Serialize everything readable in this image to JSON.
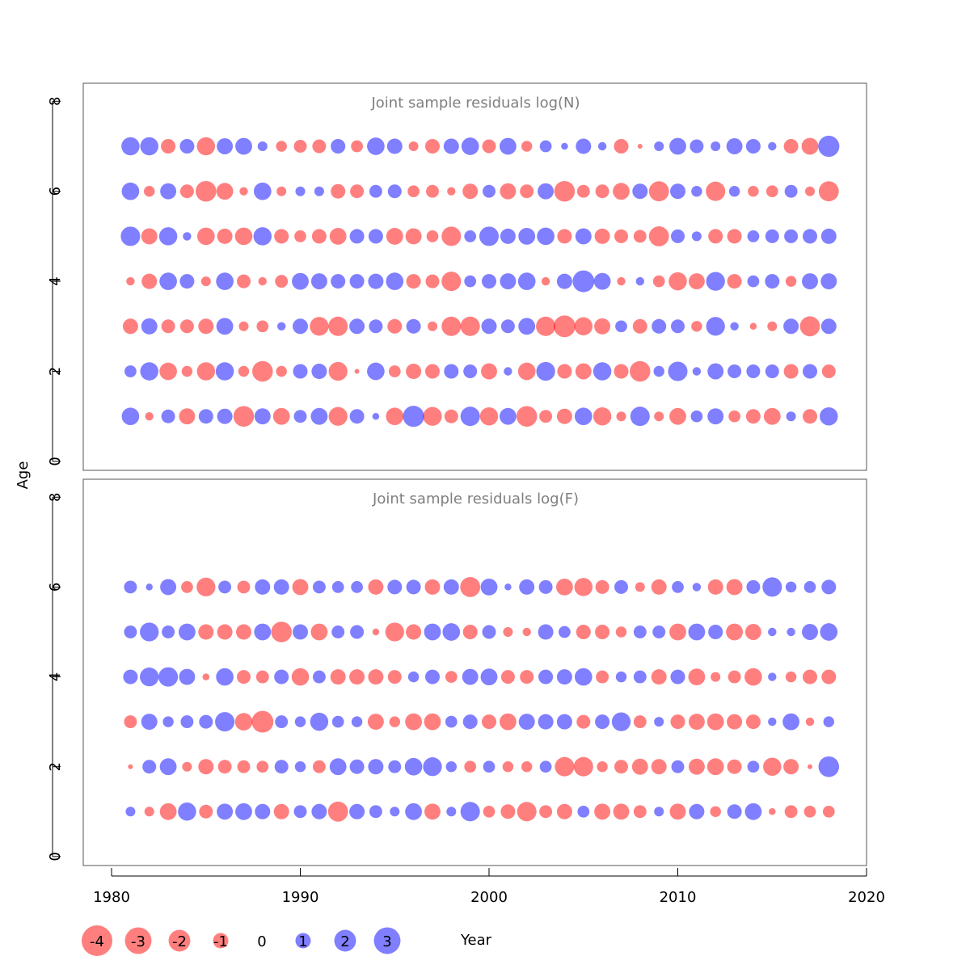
{
  "chart_data": [
    {
      "type": "scatter",
      "title": "Joint sample residuals log(N)",
      "xlabel": "Year",
      "ylabel": "Age",
      "xlim": [
        1978.5,
        2020
      ],
      "ylim": [
        -0.2,
        8.4
      ],
      "x_ticks": [
        "1980",
        "1990",
        "2000",
        "2010",
        "2020"
      ],
      "y_ticks": [
        "0",
        "2",
        "4",
        "6",
        "8"
      ],
      "ages": [
        1,
        2,
        3,
        4,
        5,
        6,
        7
      ],
      "years": [
        1981,
        1982,
        1983,
        1984,
        1985,
        1986,
        1987,
        1988,
        1989,
        1990,
        1991,
        1992,
        1993,
        1994,
        1995,
        1996,
        1997,
        1998,
        1999,
        2000,
        2001,
        2002,
        2003,
        2004,
        2005,
        2006,
        2007,
        2008,
        2009,
        2010,
        2011,
        2012,
        2013,
        2014,
        2015,
        2016,
        2017,
        2018
      ],
      "residuals": [
        [
          1.3,
          -0.3,
          0.8,
          -1.1,
          0.9,
          1.0,
          -1.8,
          1.1,
          -1.2,
          0.7,
          1.2,
          -1.5,
          0.9,
          0.2,
          -1.3,
          1.9,
          -1.5,
          -0.8,
          1.6,
          -1.4,
          1.2,
          -1.8,
          -0.7,
          -1.0,
          1.3,
          -1.4,
          -0.4,
          1.6,
          -0.4,
          -1.2,
          0.6,
          1.1,
          -0.6,
          -0.9,
          -1.2,
          0.4,
          -0.9,
          1.4
        ],
        [
          0.6,
          1.4,
          -1.3,
          -0.5,
          -1.4,
          1.4,
          -0.5,
          -1.8,
          -0.5,
          0.9,
          1.0,
          -1.5,
          -0.1,
          1.3,
          -0.6,
          -1.0,
          -0.9,
          0.9,
          0.8,
          -1.1,
          0.3,
          -1.3,
          1.5,
          -0.9,
          -1.1,
          1.4,
          -0.9,
          -1.8,
          0.5,
          1.6,
          0.3,
          1.1,
          0.8,
          0.8,
          0.8,
          -0.9,
          0.9,
          -0.8
        ],
        [
          -1.0,
          1.1,
          -0.8,
          -0.8,
          -1.0,
          1.2,
          -0.4,
          -0.6,
          0.3,
          1.0,
          -1.5,
          -1.6,
          1.0,
          0.8,
          -0.9,
          0.9,
          -0.4,
          -1.6,
          -1.6,
          1.0,
          0.8,
          1.2,
          -1.6,
          -2.0,
          -1.4,
          -1.1,
          0.6,
          -0.9,
          0.9,
          0.8,
          -0.5,
          1.5,
          0.3,
          -0.2,
          -0.4,
          1.0,
          -1.7,
          1.0
        ],
        [
          -0.3,
          -1.0,
          1.3,
          0.9,
          -0.4,
          1.3,
          -0.8,
          -0.3,
          -0.7,
          1.2,
          1.1,
          0.9,
          0.9,
          1.0,
          1.3,
          -0.9,
          -0.8,
          -1.6,
          0.6,
          0.9,
          1.1,
          1.3,
          -0.3,
          1.0,
          2.0,
          1.2,
          -0.3,
          0.3,
          -0.6,
          -1.4,
          -1.1,
          1.5,
          -0.9,
          0.6,
          0.9,
          -0.5,
          1.1,
          1.1
        ],
        [
          1.6,
          -1.1,
          1.4,
          0.3,
          -1.3,
          -1.0,
          -1.3,
          1.4,
          -0.9,
          -0.6,
          -0.9,
          -1.2,
          0.9,
          0.9,
          -1.2,
          -1.1,
          -0.6,
          -1.6,
          0.6,
          1.6,
          1.0,
          1.2,
          1.3,
          -0.9,
          1.1,
          -1.0,
          -0.8,
          -0.7,
          -1.7,
          0.8,
          0.4,
          -0.9,
          -0.9,
          0.6,
          0.8,
          0.8,
          0.9,
          1.0
        ],
        [
          1.3,
          -0.5,
          1.1,
          -0.8,
          -1.8,
          -1.2,
          -0.3,
          1.3,
          -0.4,
          0.4,
          0.4,
          -0.9,
          -0.8,
          0.7,
          0.8,
          -0.6,
          -0.7,
          -0.3,
          -1.0,
          0.7,
          -1.1,
          -0.8,
          1.1,
          -1.8,
          -0.7,
          -0.8,
          -1.2,
          1.0,
          -1.7,
          1.0,
          0.5,
          -1.6,
          0.5,
          -0.5,
          -0.6,
          0.7,
          -0.4,
          -1.7
        ],
        [
          1.4,
          1.4,
          -0.9,
          0.9,
          -1.4,
          1.1,
          1.2,
          0.4,
          -0.5,
          -0.7,
          -0.8,
          0.9,
          -0.6,
          1.3,
          1.0,
          -0.4,
          -0.9,
          1.0,
          1.3,
          -0.8,
          1.2,
          -0.5,
          0.6,
          0.2,
          1.0,
          0.3,
          -0.9,
          -0.1,
          0.4,
          1.2,
          0.8,
          0.4,
          1.1,
          0.9,
          0.3,
          -0.9,
          -1.2,
          1.9
        ]
      ]
    },
    {
      "type": "scatter",
      "title": "Joint sample residuals log(F)",
      "xlabel": "Year",
      "ylabel": "Age",
      "xlim": [
        1978.5,
        2020
      ],
      "ylim": [
        -0.2,
        8.4
      ],
      "x_ticks": [
        "1980",
        "1990",
        "2000",
        "2010",
        "2020"
      ],
      "y_ticks": [
        "0",
        "2",
        "4",
        "6",
        "8"
      ],
      "ages": [
        1,
        2,
        3,
        4,
        5,
        6
      ],
      "years": [
        1981,
        1982,
        1983,
        1984,
        1985,
        1986,
        1987,
        1988,
        1989,
        1990,
        1991,
        1992,
        1993,
        1994,
        1995,
        1996,
        1997,
        1998,
        1999,
        2000,
        2001,
        2002,
        2003,
        2004,
        2005,
        2006,
        2007,
        2008,
        2009,
        2010,
        2011,
        2012,
        2013,
        2014,
        2015,
        2016,
        2017,
        2018
      ],
      "residuals": [
        [
          0.4,
          -0.4,
          -1.2,
          1.4,
          -0.8,
          1.1,
          1.2,
          1.0,
          -1.0,
          0.7,
          1.0,
          -1.7,
          1.0,
          0.7,
          0.4,
          1.2,
          -1.1,
          0.4,
          1.6,
          -0.6,
          -0.9,
          -1.6,
          -0.7,
          -1.0,
          0.6,
          -1.1,
          -1.1,
          -0.7,
          0.4,
          -1.1,
          1.0,
          -0.5,
          0.9,
          1.2,
          -0.2,
          -0.7,
          -0.6,
          -0.6
        ],
        [
          -0.1,
          0.8,
          1.2,
          -0.4,
          -1.0,
          -0.8,
          -0.7,
          -0.6,
          0.8,
          0.5,
          -0.7,
          1.2,
          0.9,
          1.0,
          0.7,
          1.3,
          1.5,
          0.5,
          -0.6,
          0.6,
          -0.5,
          -0.5,
          0.6,
          -1.6,
          -1.6,
          -0.5,
          -0.8,
          -1.1,
          -1.0,
          0.7,
          -1.1,
          -1.2,
          -0.9,
          0.6,
          -1.4,
          -1.0,
          -0.1,
          1.8
        ],
        [
          -0.7,
          1.1,
          0.5,
          0.7,
          0.8,
          1.6,
          -1.3,
          -2.0,
          0.7,
          0.5,
          1.4,
          0.6,
          0.5,
          -1.1,
          -0.5,
          -1.2,
          -1.2,
          0.6,
          0.9,
          -0.9,
          -1.2,
          1.1,
          1.0,
          1.0,
          -0.8,
          0.9,
          1.5,
          -0.7,
          0.4,
          -0.9,
          -1.1,
          -1.2,
          -1.0,
          -0.9,
          0.3,
          1.2,
          -0.3,
          0.5
        ],
        [
          0.9,
          1.5,
          1.6,
          1.1,
          -0.2,
          1.3,
          -0.8,
          -0.7,
          0.9,
          -1.3,
          0.7,
          -1.0,
          -1.0,
          -1.0,
          -0.8,
          0.5,
          0.9,
          -0.6,
          1.1,
          1.2,
          -0.8,
          -0.8,
          0.9,
          1.0,
          1.3,
          -0.7,
          0.5,
          0.7,
          -1.0,
          0.9,
          -1.2,
          -0.4,
          -0.7,
          -1.3,
          0.3,
          -0.5,
          -0.9,
          -0.9
        ],
        [
          0.7,
          1.5,
          0.7,
          1.2,
          -1.0,
          -1.0,
          -1.0,
          1.2,
          -1.8,
          1.0,
          -1.2,
          0.7,
          0.8,
          -0.2,
          -1.5,
          -1.0,
          1.2,
          1.3,
          -0.9,
          0.8,
          -0.4,
          -0.3,
          1.0,
          0.6,
          -0.9,
          -0.9,
          -0.5,
          0.7,
          0.7,
          -1.2,
          1.2,
          0.9,
          -1.2,
          -1.1,
          0.3,
          0.3,
          1.1,
          1.3
        ],
        [
          0.7,
          0.2,
          1.1,
          -0.6,
          -1.5,
          0.7,
          -0.7,
          1.0,
          1.0,
          -1.1,
          0.7,
          0.6,
          0.6,
          -1.0,
          0.9,
          0.9,
          -1.0,
          1.0,
          -1.7,
          1.2,
          0.2,
          1.0,
          0.8,
          -1.2,
          -1.4,
          -0.8,
          0.8,
          -0.4,
          -1.0,
          0.6,
          0.3,
          -1.0,
          -1.1,
          0.8,
          1.6,
          0.5,
          0.6,
          0.9
        ]
      ]
    }
  ],
  "legend": {
    "items": [
      {
        "label": "-4",
        "value": -4
      },
      {
        "label": "-3",
        "value": -3
      },
      {
        "label": "-2",
        "value": -2
      },
      {
        "label": "-1",
        "value": -1
      },
      {
        "label": "0",
        "value": 0
      },
      {
        "label": "1",
        "value": 1
      },
      {
        "label": "2",
        "value": 2
      },
      {
        "label": "3",
        "value": 3
      }
    ]
  },
  "labels": {
    "x_axis": "Year",
    "y_axis": "Age"
  },
  "colors": {
    "negative": "#ff0000",
    "positive": "#0000ff",
    "title": "#7f7f7f",
    "frame": "#555555"
  }
}
